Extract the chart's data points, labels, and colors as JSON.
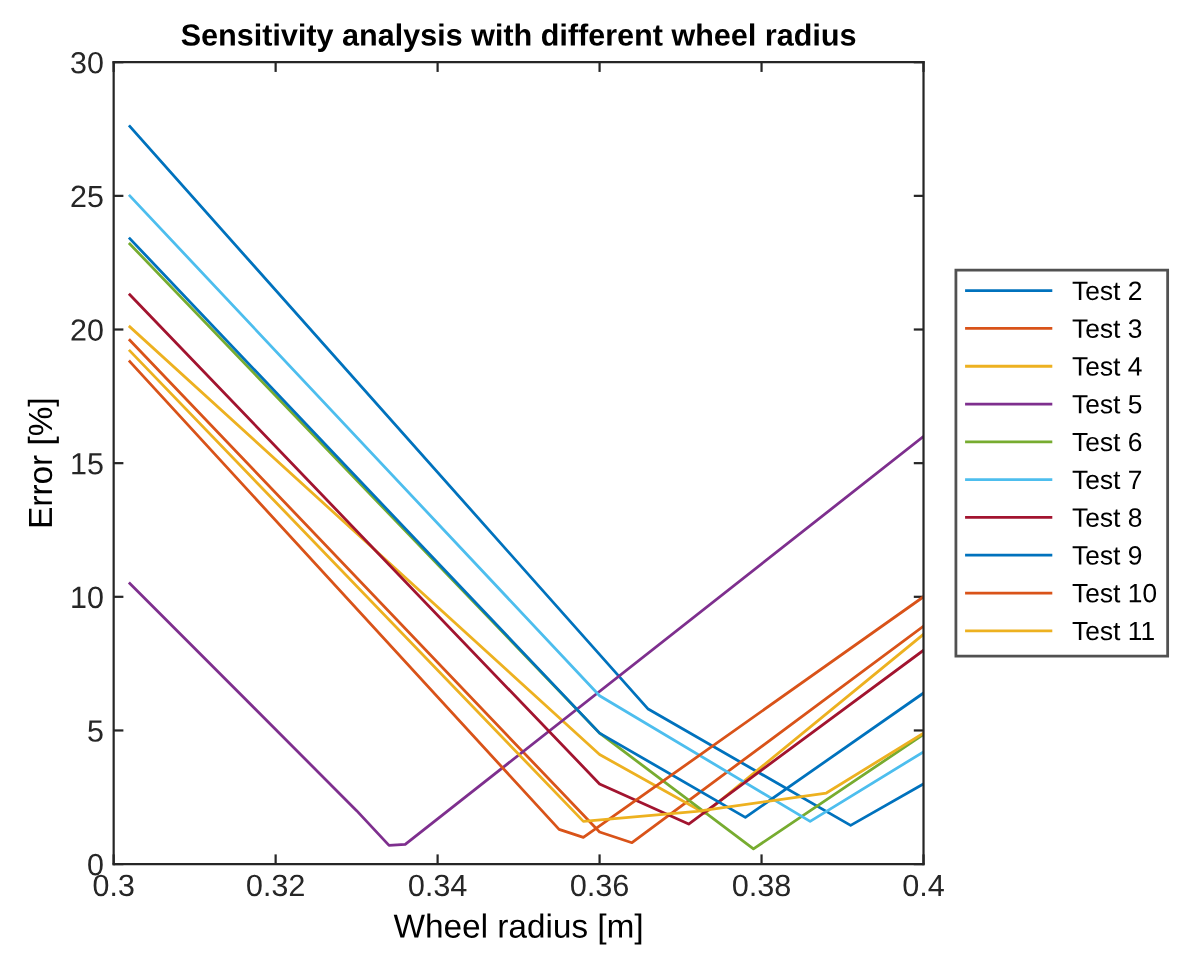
{
  "chart_data": {
    "type": "line",
    "title": "Sensitivity analysis with different wheel radius",
    "xlabel": "Wheel radius [m]",
    "ylabel": "Error [%]",
    "xlim": [
      0.3,
      0.4
    ],
    "xticks": [
      0.3,
      0.32,
      0.34,
      0.36,
      0.38,
      0.4
    ],
    "ylim": [
      0,
      30
    ],
    "yticks": [
      0,
      5,
      10,
      15,
      20,
      25,
      30
    ],
    "grid": false,
    "legend": "right",
    "series": [
      {
        "name": "Test 2",
        "color": "#0072bd",
        "x": [
          0.302,
          0.366,
          0.391,
          0.4
        ],
        "values": [
          27.6,
          5.8,
          1.45,
          3.0
        ]
      },
      {
        "name": "Test 3",
        "color": "#d95319",
        "x": [
          0.302,
          0.36,
          0.364,
          0.4
        ],
        "values": [
          19.6,
          1.2,
          0.8,
          8.9
        ]
      },
      {
        "name": "Test 4",
        "color": "#edb120",
        "x": [
          0.302,
          0.36,
          0.373,
          0.4
        ],
        "values": [
          20.1,
          4.1,
          1.9,
          8.6
        ]
      },
      {
        "name": "Test 5",
        "color": "#7e2f8e",
        "x": [
          0.302,
          0.33,
          0.334,
          0.336,
          0.4
        ],
        "values": [
          10.5,
          2.0,
          0.7,
          0.74,
          16.0
        ]
      },
      {
        "name": "Test 6",
        "color": "#77ac30",
        "x": [
          0.302,
          0.36,
          0.379,
          0.4
        ],
        "values": [
          23.2,
          4.9,
          0.57,
          4.85
        ]
      },
      {
        "name": "Test 7",
        "color": "#4dbeee",
        "x": [
          0.302,
          0.36,
          0.386,
          0.4
        ],
        "values": [
          25.0,
          6.3,
          1.6,
          4.2
        ]
      },
      {
        "name": "Test 8",
        "color": "#a2142f",
        "x": [
          0.302,
          0.36,
          0.371,
          0.4
        ],
        "values": [
          21.3,
          3.0,
          1.5,
          8.0
        ]
      },
      {
        "name": "Test 9",
        "color": "#0072bd",
        "x": [
          0.302,
          0.36,
          0.378,
          0.4
        ],
        "values": [
          23.4,
          4.9,
          1.75,
          6.4
        ]
      },
      {
        "name": "Test 10",
        "color": "#d95319",
        "x": [
          0.302,
          0.355,
          0.358,
          0.4
        ],
        "values": [
          18.8,
          1.3,
          1.0,
          10.0
        ]
      },
      {
        "name": "Test 11",
        "color": "#edb120",
        "x": [
          0.302,
          0.358,
          0.372,
          0.388,
          0.4
        ],
        "values": [
          19.2,
          1.6,
          1.97,
          2.66,
          4.9
        ]
      }
    ]
  }
}
